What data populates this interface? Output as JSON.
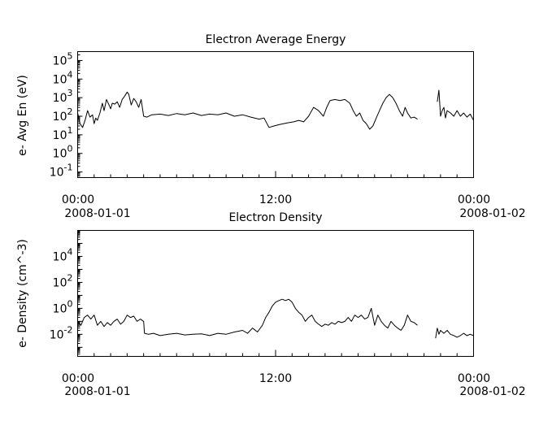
{
  "chart_data": [
    {
      "type": "line",
      "title": "Electron Average Energy",
      "ylabel": "e- Avg En (eV)",
      "xlabel": "",
      "y_scale": "log",
      "ylim": [
        0.05,
        300000
      ],
      "xlim_hours": [
        0,
        24
      ],
      "y_tick_labels": [
        {
          "base": "10",
          "exp": "-1",
          "value": 0.1
        },
        {
          "base": "10",
          "exp": "0",
          "value": 1
        },
        {
          "base": "10",
          "exp": "1",
          "value": 10
        },
        {
          "base": "10",
          "exp": "2",
          "value": 100
        },
        {
          "base": "10",
          "exp": "3",
          "value": 1000
        },
        {
          "base": "10",
          "exp": "4",
          "value": 10000
        },
        {
          "base": "10",
          "exp": "5",
          "value": 100000
        }
      ],
      "x_tick_labels": [
        {
          "time": "00:00",
          "date": "2008-01-01",
          "hour": 0
        },
        {
          "time": "12:00",
          "date": "",
          "hour": 12
        },
        {
          "time": "00:00",
          "date": "2008-01-02",
          "hour": 24
        }
      ],
      "grid": false,
      "series": [
        {
          "segments": [
            [
              [
                0.0,
                150
              ],
              [
                0.15,
                40
              ],
              [
                0.3,
                25
              ],
              [
                0.45,
                60
              ],
              [
                0.6,
                200
              ],
              [
                0.75,
                90
              ],
              [
                0.9,
                120
              ],
              [
                1.0,
                40
              ],
              [
                1.1,
                80
              ],
              [
                1.2,
                60
              ],
              [
                1.35,
                150
              ],
              [
                1.5,
                500
              ],
              [
                1.6,
                200
              ],
              [
                1.75,
                800
              ],
              [
                1.9,
                400
              ],
              [
                2.0,
                250
              ],
              [
                2.1,
                500
              ],
              [
                2.25,
                450
              ],
              [
                2.4,
                600
              ],
              [
                2.55,
                300
              ],
              [
                2.7,
                800
              ],
              [
                2.85,
                1200
              ],
              [
                3.0,
                2000
              ],
              [
                3.1,
                1500
              ],
              [
                3.25,
                400
              ],
              [
                3.4,
                900
              ],
              [
                3.55,
                600
              ],
              [
                3.7,
                300
              ],
              [
                3.85,
                800
              ],
              [
                4.0,
                100
              ],
              [
                4.2,
                90
              ],
              [
                4.5,
                120
              ],
              [
                5.0,
                130
              ],
              [
                5.5,
                110
              ],
              [
                6.0,
                140
              ],
              [
                6.5,
                120
              ],
              [
                7.0,
                150
              ],
              [
                7.5,
                110
              ],
              [
                8.0,
                130
              ],
              [
                8.5,
                120
              ],
              [
                9.0,
                150
              ],
              [
                9.5,
                100
              ],
              [
                10.0,
                120
              ],
              [
                10.5,
                90
              ],
              [
                11.0,
                70
              ],
              [
                11.3,
                80
              ],
              [
                11.6,
                25
              ],
              [
                11.9,
                30
              ],
              [
                12.2,
                35
              ],
              [
                12.5,
                40
              ],
              [
                12.8,
                45
              ],
              [
                13.1,
                50
              ],
              [
                13.4,
                60
              ],
              [
                13.7,
                50
              ],
              [
                14.0,
                100
              ],
              [
                14.3,
                300
              ],
              [
                14.6,
                200
              ],
              [
                14.9,
                100
              ],
              [
                15.1,
                300
              ],
              [
                15.3,
                700
              ],
              [
                15.6,
                800
              ],
              [
                15.9,
                700
              ],
              [
                16.2,
                800
              ],
              [
                16.5,
                500
              ],
              [
                16.7,
                200
              ],
              [
                16.9,
                100
              ],
              [
                17.1,
                150
              ],
              [
                17.3,
                60
              ],
              [
                17.5,
                40
              ],
              [
                17.7,
                20
              ],
              [
                17.9,
                30
              ],
              [
                18.1,
                80
              ],
              [
                18.3,
                200
              ],
              [
                18.5,
                500
              ],
              [
                18.7,
                1000
              ],
              [
                18.9,
                1500
              ],
              [
                19.1,
                1000
              ],
              [
                19.3,
                500
              ],
              [
                19.5,
                200
              ],
              [
                19.7,
                100
              ],
              [
                19.85,
                300
              ],
              [
                20.0,
                150
              ],
              [
                20.2,
                80
              ],
              [
                20.4,
                90
              ],
              [
                20.6,
                70
              ]
            ],
            [
              [
                21.8,
                600
              ],
              [
                21.9,
                2500
              ],
              [
                22.0,
                100
              ],
              [
                22.1,
                200
              ],
              [
                22.2,
                300
              ],
              [
                22.3,
                80
              ],
              [
                22.4,
                200
              ],
              [
                22.6,
                150
              ],
              [
                22.8,
                100
              ],
              [
                23.0,
                200
              ],
              [
                23.2,
                100
              ],
              [
                23.4,
                150
              ],
              [
                23.6,
                90
              ],
              [
                23.8,
                130
              ],
              [
                24.0,
                60
              ]
            ]
          ]
        }
      ]
    },
    {
      "type": "line",
      "title": "Electron Density",
      "ylabel": "e- Density (cm^-3)",
      "xlabel": "",
      "y_scale": "log",
      "ylim": [
        0.0002,
        1000000
      ],
      "xlim_hours": [
        0,
        24
      ],
      "y_tick_labels": [
        {
          "base": "10",
          "exp": "-2",
          "value": 0.01
        },
        {
          "base": "10",
          "exp": "0",
          "value": 1
        },
        {
          "base": "10",
          "exp": "2",
          "value": 100
        },
        {
          "base": "10",
          "exp": "4",
          "value": 10000
        }
      ],
      "x_tick_labels": [
        {
          "time": "00:00",
          "date": "2008-01-01",
          "hour": 0
        },
        {
          "time": "12:00",
          "date": "",
          "hour": 12
        },
        {
          "time": "00:00",
          "date": "2008-01-02",
          "hour": 24
        }
      ],
      "grid": false,
      "series": [
        {
          "segments": [
            [
              [
                0.0,
                0.1
              ],
              [
                0.2,
                0.05
              ],
              [
                0.4,
                0.2
              ],
              [
                0.6,
                0.3
              ],
              [
                0.8,
                0.15
              ],
              [
                1.0,
                0.3
              ],
              [
                1.2,
                0.05
              ],
              [
                1.4,
                0.1
              ],
              [
                1.6,
                0.04
              ],
              [
                1.8,
                0.08
              ],
              [
                2.0,
                0.05
              ],
              [
                2.2,
                0.1
              ],
              [
                2.4,
                0.15
              ],
              [
                2.6,
                0.06
              ],
              [
                2.8,
                0.1
              ],
              [
                3.0,
                0.3
              ],
              [
                3.2,
                0.2
              ],
              [
                3.4,
                0.25
              ],
              [
                3.6,
                0.1
              ],
              [
                3.8,
                0.15
              ],
              [
                4.0,
                0.1
              ],
              [
                4.05,
                0.012
              ],
              [
                4.3,
                0.01
              ],
              [
                4.6,
                0.012
              ],
              [
                5.0,
                0.008
              ],
              [
                5.5,
                0.01
              ],
              [
                6.0,
                0.012
              ],
              [
                6.5,
                0.009
              ],
              [
                7.0,
                0.01
              ],
              [
                7.5,
                0.011
              ],
              [
                8.0,
                0.008
              ],
              [
                8.5,
                0.012
              ],
              [
                9.0,
                0.01
              ],
              [
                9.5,
                0.015
              ],
              [
                10.0,
                0.02
              ],
              [
                10.3,
                0.012
              ],
              [
                10.6,
                0.03
              ],
              [
                10.9,
                0.015
              ],
              [
                11.2,
                0.05
              ],
              [
                11.4,
                0.2
              ],
              [
                11.6,
                0.5
              ],
              [
                11.8,
                1.5
              ],
              [
                12.0,
                3
              ],
              [
                12.2,
                4
              ],
              [
                12.4,
                5
              ],
              [
                12.6,
                4
              ],
              [
                12.8,
                5
              ],
              [
                13.0,
                3
              ],
              [
                13.2,
                1
              ],
              [
                13.4,
                0.5
              ],
              [
                13.6,
                0.3
              ],
              [
                13.8,
                0.1
              ],
              [
                14.0,
                0.2
              ],
              [
                14.2,
                0.3
              ],
              [
                14.4,
                0.1
              ],
              [
                14.6,
                0.06
              ],
              [
                14.8,
                0.04
              ],
              [
                15.0,
                0.06
              ],
              [
                15.2,
                0.05
              ],
              [
                15.4,
                0.08
              ],
              [
                15.6,
                0.06
              ],
              [
                15.8,
                0.1
              ],
              [
                16.0,
                0.08
              ],
              [
                16.2,
                0.1
              ],
              [
                16.4,
                0.2
              ],
              [
                16.6,
                0.1
              ],
              [
                16.8,
                0.3
              ],
              [
                17.0,
                0.2
              ],
              [
                17.2,
                0.3
              ],
              [
                17.4,
                0.15
              ],
              [
                17.6,
                0.2
              ],
              [
                17.8,
                1
              ],
              [
                18.0,
                0.05
              ],
              [
                18.2,
                0.3
              ],
              [
                18.4,
                0.1
              ],
              [
                18.6,
                0.05
              ],
              [
                18.8,
                0.03
              ],
              [
                19.0,
                0.1
              ],
              [
                19.2,
                0.05
              ],
              [
                19.4,
                0.03
              ],
              [
                19.6,
                0.02
              ],
              [
                19.8,
                0.05
              ],
              [
                20.0,
                0.3
              ],
              [
                20.2,
                0.1
              ],
              [
                20.4,
                0.08
              ],
              [
                20.6,
                0.05
              ]
            ],
            [
              [
                21.7,
                0.005
              ],
              [
                21.8,
                0.03
              ],
              [
                21.9,
                0.01
              ],
              [
                22.0,
                0.02
              ],
              [
                22.2,
                0.012
              ],
              [
                22.4,
                0.02
              ],
              [
                22.6,
                0.01
              ],
              [
                22.8,
                0.008
              ],
              [
                23.0,
                0.006
              ],
              [
                23.2,
                0.008
              ],
              [
                23.4,
                0.012
              ],
              [
                23.6,
                0.008
              ],
              [
                23.8,
                0.01
              ],
              [
                24.0,
                0.008
              ]
            ]
          ]
        }
      ]
    }
  ]
}
